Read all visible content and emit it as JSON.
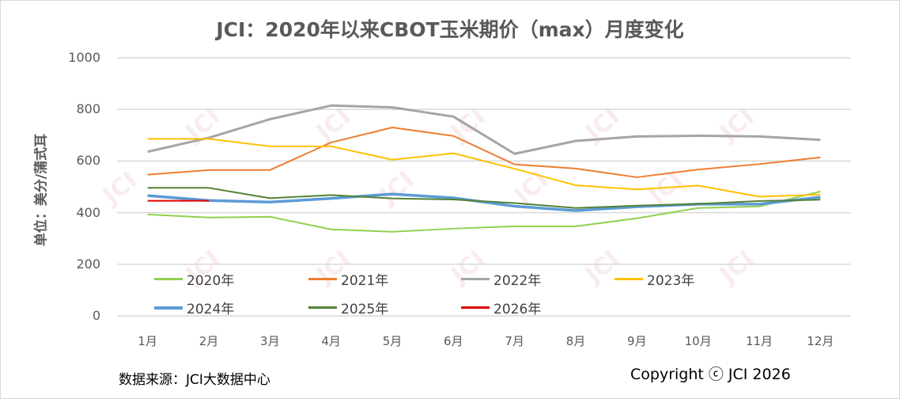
{
  "chart_data": {
    "type": "line",
    "title": "JCI：2020年以来CBOT玉米期价（max）月度变化",
    "xlabel": "",
    "ylabel": "单位：美分/蒲式耳",
    "ylim": [
      0,
      1000
    ],
    "yticks": [
      "0",
      "200",
      "400",
      "600",
      "800",
      "1000"
    ],
    "ytick_values": [
      0,
      200,
      400,
      600,
      800,
      1000
    ],
    "categories": [
      "1月",
      "2月",
      "3月",
      "4月",
      "5月",
      "6月",
      "7月",
      "8月",
      "9月",
      "10月",
      "11月",
      "12月"
    ],
    "grid": true,
    "legend_position": "bottom-inside",
    "series": [
      {
        "name": "2020年",
        "color": "#92d050",
        "values": [
          393,
          381,
          384,
          335,
          326,
          338,
          347,
          347,
          378,
          418,
          424,
          482
        ]
      },
      {
        "name": "2021年",
        "color": "#ed7d31",
        "values": [
          547,
          565,
          565,
          672,
          730,
          697,
          587,
          571,
          537,
          567,
          588,
          614
        ]
      },
      {
        "name": "2022年",
        "color": "#a5a5a5",
        "values": [
          636,
          690,
          762,
          815,
          808,
          772,
          628,
          678,
          695,
          698,
          695,
          682
        ]
      },
      {
        "name": "2023年",
        "color": "#ffc000",
        "values": [
          686,
          686,
          657,
          657,
          605,
          630,
          570,
          506,
          490,
          505,
          462,
          470
        ]
      },
      {
        "name": "2024年",
        "color": "#5b9bd5",
        "values": [
          466,
          447,
          441,
          455,
          472,
          457,
          425,
          408,
          423,
          433,
          433,
          460
        ]
      },
      {
        "name": "2025年",
        "color": "#548235",
        "values": [
          496,
          496,
          456,
          468,
          455,
          451,
          437,
          418,
          427,
          434,
          445,
          450
        ]
      },
      {
        "name": "2026年",
        "color": "#e00000",
        "values": [
          446,
          446
        ]
      }
    ]
  },
  "footer": {
    "source": "数据来源：JCI大数据中心",
    "copyright": "Copyright ⓒ JCI  2026"
  },
  "watermark": "JCI"
}
